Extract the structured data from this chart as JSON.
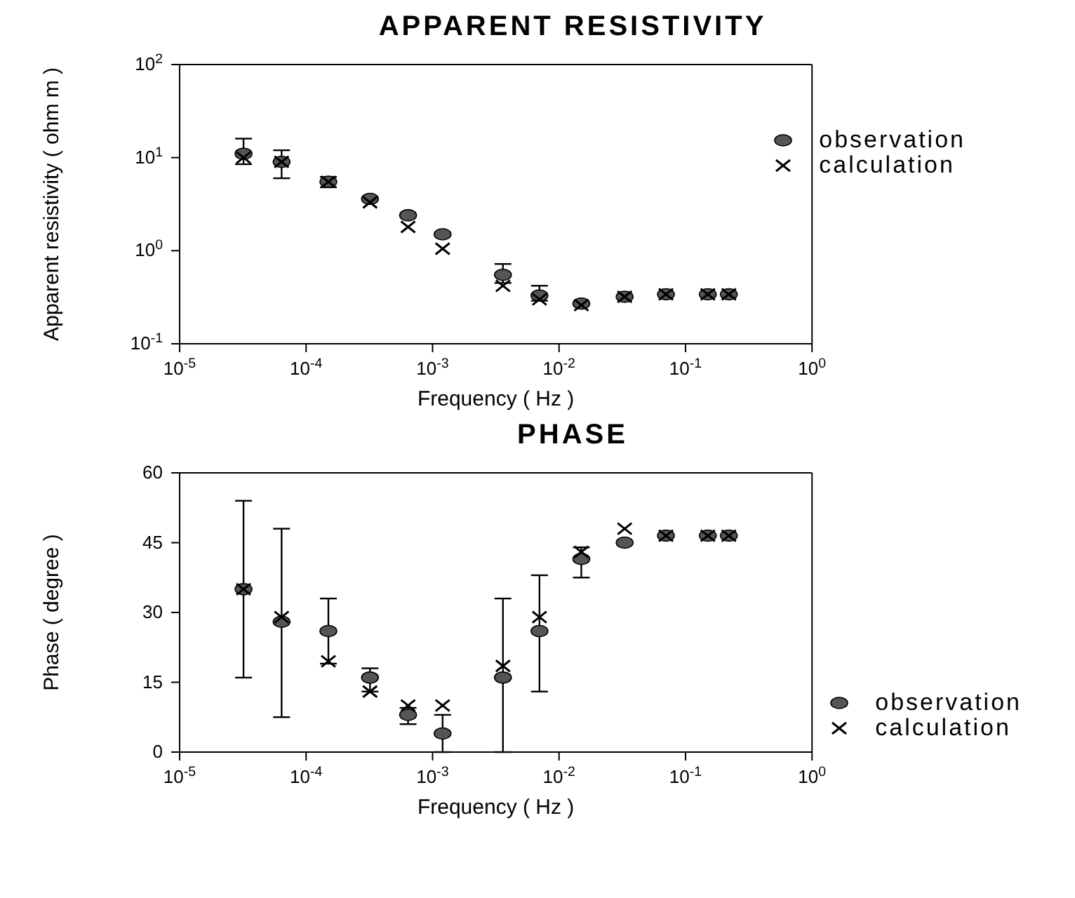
{
  "chart_data": [
    {
      "type": "scatter",
      "title": "APPARENT RESISTIVITY",
      "xlabel": "Frequency ( Hz )",
      "ylabel": "Apparent resistivity ( ohm m )",
      "log": "xy",
      "x": [
        3.2e-05,
        6.4e-05,
        0.00015,
        0.00032,
        0.00064,
        0.0012,
        0.0036,
        0.007,
        0.015,
        0.033,
        0.07,
        0.15,
        0.22
      ],
      "xlim": [
        1e-05,
        1
      ],
      "xticks": [
        {
          "value": 1e-05,
          "label": "10$^{-5}$"
        },
        {
          "value": 0.0001,
          "label": "10$^{-4}$"
        },
        {
          "value": 0.001,
          "label": "10$^{-3}$"
        },
        {
          "value": 0.01,
          "label": "10$^{-2}$"
        },
        {
          "value": 0.1,
          "label": "10$^{-1}$"
        },
        {
          "value": 1,
          "label": "10$^{0}$"
        }
      ],
      "ylim": [
        0.1,
        100
      ],
      "yticks": [
        {
          "value": 0.1,
          "label": "10$^{-1}$"
        },
        {
          "value": 1,
          "label": "10$^{0}$"
        },
        {
          "value": 10,
          "label": "10$^{1}$"
        },
        {
          "value": 100,
          "label": "10$^{2}$"
        }
      ],
      "legend": "top right",
      "series": [
        {
          "name": "observation",
          "color": "#555555",
          "marker": "circle",
          "values": [
            11,
            9,
            5.5,
            3.6,
            2.4,
            1.5,
            0.55,
            0.33,
            0.27,
            0.32,
            0.34,
            0.34,
            0.34
          ],
          "errors": [
            [
              8.5,
              16
            ],
            [
              6,
              12
            ],
            [
              4.8,
              6.2
            ],
            null,
            null,
            null,
            [
              0.45,
              0.72
            ],
            [
              0.29,
              0.42
            ],
            null,
            null,
            null,
            null,
            null
          ]
        },
        {
          "name": "calculation",
          "color": "#000000",
          "marker": "cross",
          "values": [
            10,
            9,
            5.5,
            3.3,
            1.8,
            1.05,
            0.42,
            0.3,
            0.26,
            0.32,
            0.34,
            0.34,
            0.34
          ]
        }
      ]
    },
    {
      "type": "scatter",
      "title": "PHASE",
      "xlabel": "Frequency ( Hz )",
      "ylabel": "Phase ( degree )",
      "log": "x",
      "x": [
        3.2e-05,
        6.4e-05,
        0.00015,
        0.00032,
        0.00064,
        0.0012,
        0.0036,
        0.007,
        0.015,
        0.033,
        0.07,
        0.15,
        0.22
      ],
      "xlim": [
        1e-05,
        1
      ],
      "xticks": [
        {
          "value": 1e-05,
          "label": "10$^{-5}$"
        },
        {
          "value": 0.0001,
          "label": "10$^{-4}$"
        },
        {
          "value": 0.001,
          "label": "10$^{-3}$"
        },
        {
          "value": 0.01,
          "label": "10$^{-2}$"
        },
        {
          "value": 0.1,
          "label": "10$^{-1}$"
        },
        {
          "value": 1,
          "label": "10$^{0}$"
        }
      ],
      "ylim": [
        0,
        60
      ],
      "yticks": [
        0,
        15,
        30,
        45,
        60
      ],
      "legend": "bottom right",
      "series": [
        {
          "name": "observation",
          "color": "#555555",
          "marker": "circle",
          "values": [
            35,
            28,
            26,
            16,
            8,
            4,
            16,
            26,
            41.5,
            45,
            46.5,
            46.5,
            46.5
          ],
          "errors": [
            [
              16,
              54
            ],
            [
              7.5,
              48
            ],
            [
              19,
              33
            ],
            [
              13,
              18
            ],
            [
              6,
              9.5
            ],
            [
              0,
              8
            ],
            [
              0,
              33
            ],
            [
              13,
              38
            ],
            [
              37.5,
              44
            ],
            null,
            null,
            null,
            null
          ]
        },
        {
          "name": "calculation",
          "color": "#000000",
          "marker": "cross",
          "values": [
            35,
            29,
            19.5,
            13,
            10,
            10,
            18.5,
            29,
            43,
            48,
            46.5,
            46.5,
            46.5
          ]
        }
      ]
    }
  ]
}
